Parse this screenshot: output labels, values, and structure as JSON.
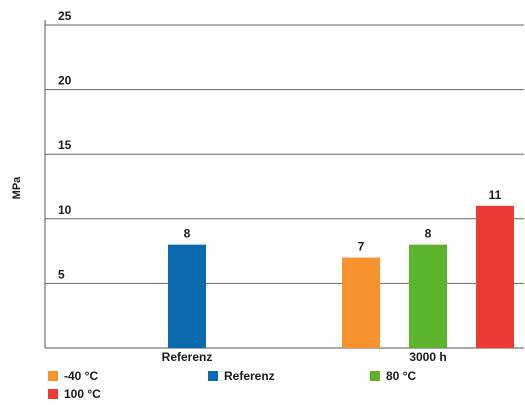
{
  "chart_data": {
    "type": "bar",
    "ylabel": "MPa",
    "ylim": [
      0,
      25
    ],
    "yticks": [
      5,
      10,
      15,
      20,
      25
    ],
    "grid": true,
    "legend_position": "bottom",
    "categories": [
      "Referenz",
      "3000 h"
    ],
    "series": [
      {
        "name": "-40 °C",
        "color": "#f7932f",
        "values": [
          null,
          7
        ]
      },
      {
        "name": "Referenz",
        "color": "#0a6aad",
        "values": [
          8,
          null
        ]
      },
      {
        "name": "80 °C",
        "color": "#5bb42b",
        "values": [
          null,
          8
        ]
      },
      {
        "name": "100 °C",
        "color": "#ee3a35",
        "values": [
          null,
          11
        ]
      }
    ]
  }
}
